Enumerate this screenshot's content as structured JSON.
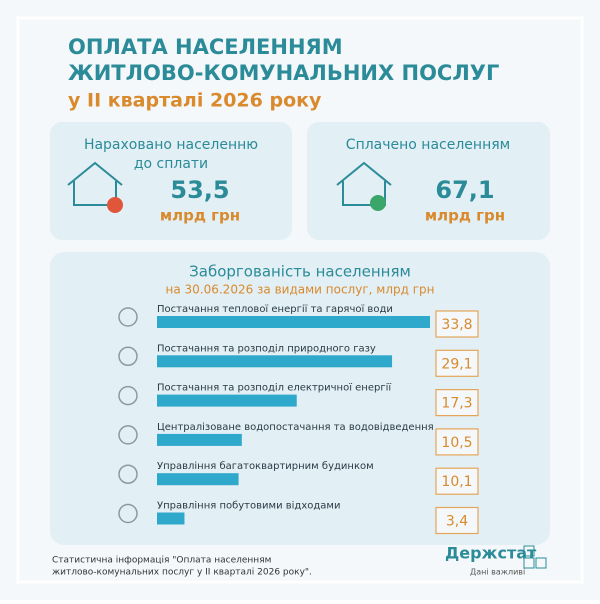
{
  "header": {
    "line1": "ОПЛАТА НАСЕЛЕННЯМ",
    "line2": "ЖИТЛОВО-КОМУНАЛЬНИХ ПОСЛУГ",
    "line3": "у ІІ кварталі 2026 року"
  },
  "cards": [
    {
      "label_lines": [
        "Нараховано населенню",
        "до сплати"
      ],
      "value": "53,5",
      "unit": "млрд грн"
    },
    {
      "label_lines": [
        "Сплачено населенням"
      ],
      "value": "67,1",
      "unit": "млрд грн"
    }
  ],
  "chart_data": {
    "type": "bar",
    "orientation": "horizontal",
    "title": "Заборгованість населенням",
    "subtitle": "на 30.06.2026 за видами послуг, млрд грн",
    "categories": [
      "Постачання теплової енергії та гарячої води",
      "Постачання та розподіл природного газу",
      "Постачання та розподіл електричної енергії",
      "Централізоване водопостачання та водовідведення",
      "Управління багатоквартирним будинком",
      "Управління побутовими відходами"
    ],
    "values": [
      33.8,
      29.1,
      17.3,
      10.5,
      10.1,
      3.4
    ],
    "value_labels": [
      "33,8",
      "29,1",
      "17,3",
      "10,5",
      "10,1",
      "3,4"
    ],
    "color": "#2ea8cb"
  },
  "footer": {
    "line1": "Статистична інформація \"Оплата населенням",
    "line2": "житлово-комунальних послуг у ІІ кварталі 2026 року\".",
    "brand": "Держстат",
    "slogan": "Дані важливі"
  }
}
